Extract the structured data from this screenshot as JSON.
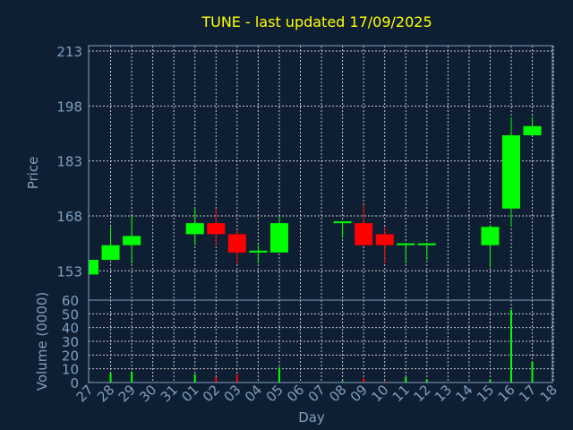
{
  "colors": {
    "background": "#0f1f33",
    "title": "#ffff00",
    "axis_text": "#7f9fbf",
    "frame": "#7f9fbf",
    "grid": "#c8c8c8",
    "up": "#00ff00",
    "down": "#ff0000"
  },
  "chart_data": [
    {
      "type": "candlestick",
      "title": "TUNE - last updated 17/09/2025",
      "xlabel": "Day",
      "ylabel": "Price",
      "ylim": [
        145,
        213
      ],
      "yticks": [
        "153",
        "168",
        "183",
        "198",
        "213"
      ],
      "grid": true,
      "categories": [
        "27",
        "28",
        "29",
        "30",
        "31",
        "01",
        "02",
        "03",
        "04",
        "05",
        "06",
        "07",
        "08",
        "09",
        "10",
        "11",
        "12",
        "13",
        "14",
        "15",
        "16",
        "17",
        "18"
      ],
      "candles": [
        {
          "day": "27",
          "open": 152,
          "close": 156,
          "high": 156,
          "low": 152
        },
        {
          "day": "28",
          "open": 156,
          "close": 160,
          "high": 165,
          "low": 156
        },
        {
          "day": "29",
          "open": 160,
          "close": 162.5,
          "high": 168,
          "low": 155
        },
        {
          "day": "01",
          "open": 163,
          "close": 166,
          "high": 170,
          "low": 160
        },
        {
          "day": "02",
          "open": 166,
          "close": 163,
          "high": 170,
          "low": 160
        },
        {
          "day": "03",
          "open": 163,
          "close": 158,
          "high": 164,
          "low": 155
        },
        {
          "day": "04",
          "open": 158,
          "close": 158.5,
          "high": 160,
          "low": 155
        },
        {
          "day": "05",
          "open": 158,
          "close": 166,
          "high": 168,
          "low": 158
        },
        {
          "day": "08",
          "open": 166,
          "close": 166.5,
          "high": 166.5,
          "low": 162
        },
        {
          "day": "09",
          "open": 166,
          "close": 160,
          "high": 171,
          "low": 160
        },
        {
          "day": "10",
          "open": 163,
          "close": 160,
          "high": 165,
          "low": 155
        },
        {
          "day": "11",
          "open": 160,
          "close": 160.5,
          "high": 160.5,
          "low": 155
        },
        {
          "day": "12",
          "open": 160,
          "close": 160.5,
          "high": 160.5,
          "low": 156
        },
        {
          "day": "15",
          "open": 160,
          "close": 165,
          "high": 165.5,
          "low": 154
        },
        {
          "day": "16",
          "open": 170,
          "close": 190,
          "high": 195,
          "low": 165
        },
        {
          "day": "17",
          "open": 190,
          "close": 192.5,
          "high": 195,
          "low": 190
        }
      ]
    },
    {
      "type": "bar",
      "ylabel": "Volume (0000)",
      "ylim": [
        0,
        60
      ],
      "yticks": [
        "0",
        "10",
        "20",
        "30",
        "40",
        "50",
        "60"
      ],
      "grid": true,
      "volumes": [
        {
          "day": "27",
          "value": 0.5,
          "dir": "up"
        },
        {
          "day": "28",
          "value": 7,
          "dir": "up"
        },
        {
          "day": "29",
          "value": 8,
          "dir": "up"
        },
        {
          "day": "01",
          "value": 6,
          "dir": "up"
        },
        {
          "day": "02",
          "value": 4,
          "dir": "down"
        },
        {
          "day": "03",
          "value": 6,
          "dir": "down"
        },
        {
          "day": "04",
          "value": 0.5,
          "dir": "up"
        },
        {
          "day": "05",
          "value": 11,
          "dir": "up"
        },
        {
          "day": "08",
          "value": 1,
          "dir": "up"
        },
        {
          "day": "09",
          "value": 3,
          "dir": "down"
        },
        {
          "day": "10",
          "value": 1,
          "dir": "down"
        },
        {
          "day": "11",
          "value": 4,
          "dir": "up"
        },
        {
          "day": "12",
          "value": 2,
          "dir": "up"
        },
        {
          "day": "15",
          "value": 2,
          "dir": "up"
        },
        {
          "day": "16",
          "value": 53,
          "dir": "up"
        },
        {
          "day": "17",
          "value": 15,
          "dir": "up"
        }
      ]
    }
  ]
}
